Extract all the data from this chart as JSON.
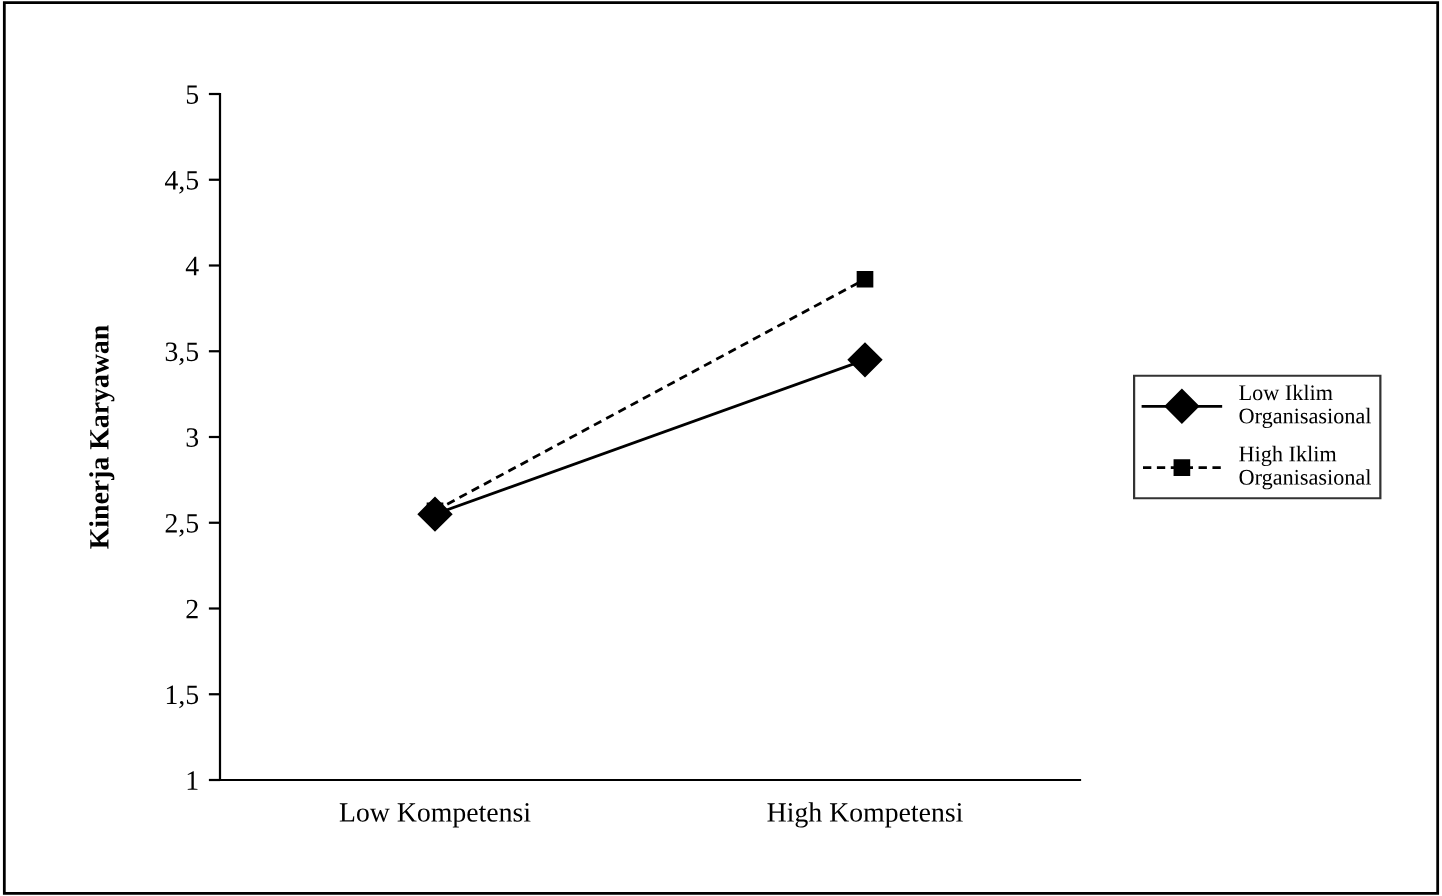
{
  "chart_data": {
    "type": "line",
    "ylabel": "Kinerja Karyawan",
    "categories": [
      "Low Kompetensi",
      "High Kompetensi"
    ],
    "series": [
      {
        "name": "Low Iklim\nOrganisasional",
        "color": "#000000",
        "values": [
          2.55,
          3.45
        ],
        "marker": "diamond",
        "line_style": "solid"
      },
      {
        "name": "High Iklim\nOrganisasional",
        "color": "#000000",
        "values": [
          2.57,
          3.92
        ],
        "marker": "square",
        "line_style": "dashed"
      }
    ],
    "ylim": [
      1,
      5
    ],
    "yticks": [
      1,
      {
        "value": 1.5,
        "label": "1,5"
      },
      2,
      {
        "value": 2.5,
        "label": "2,5"
      },
      3,
      {
        "value": 3.5,
        "label": "3,5"
      },
      4,
      {
        "value": 4.5,
        "label": "4,5"
      },
      5
    ],
    "grid": false,
    "legend": "right"
  }
}
